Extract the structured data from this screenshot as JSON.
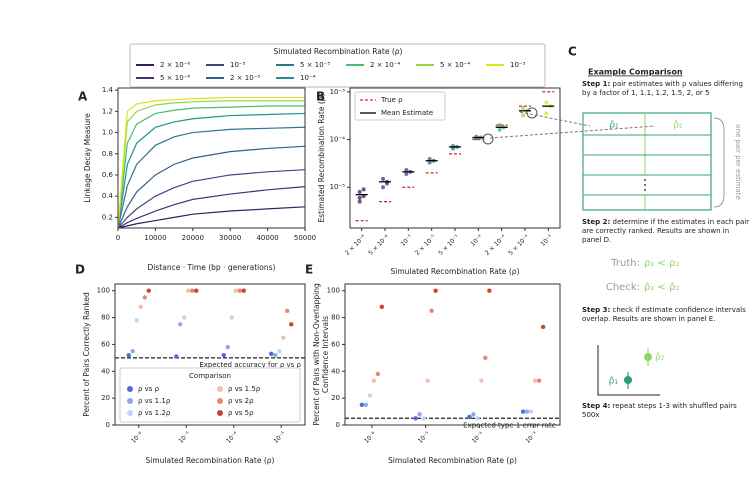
{
  "chart_data": [
    {
      "type": "line",
      "panel": "A",
      "xlabel": "Distance · Time (bp · generations)",
      "ylabel": "Linkage Decay Measure",
      "legend_title": "Simulated Recombination Rate (ρ)",
      "x": [
        0,
        2500,
        5000,
        10000,
        15000,
        20000,
        30000,
        40000,
        50000
      ],
      "xlim": [
        0,
        50000
      ],
      "xticks": [
        0,
        10000,
        20000,
        30000,
        40000,
        50000
      ],
      "ylim": [
        0.1,
        1.42
      ],
      "yticks": [
        0.2,
        0.4,
        0.6,
        0.8,
        {
          "value": 1,
          "label": "1.0"
        },
        1.2,
        1.4
      ],
      "series": [
        {
          "name": "2 × 10⁻⁶",
          "color": "#3d1a5c",
          "values": [
            0.1,
            0.12,
            0.14,
            0.17,
            0.2,
            0.23,
            0.26,
            0.28,
            0.3
          ]
        },
        {
          "name": "5 × 10⁻⁶",
          "color": "#46307e",
          "values": [
            0.1,
            0.15,
            0.19,
            0.26,
            0.32,
            0.37,
            0.42,
            0.46,
            0.49
          ]
        },
        {
          "name": "10⁻⁵",
          "color": "#414487",
          "values": [
            0.1,
            0.2,
            0.28,
            0.4,
            0.48,
            0.54,
            0.6,
            0.63,
            0.65
          ]
        },
        {
          "name": "2 × 10⁻⁵",
          "color": "#355f8d",
          "values": [
            0.1,
            0.3,
            0.44,
            0.6,
            0.7,
            0.76,
            0.82,
            0.85,
            0.87
          ]
        },
        {
          "name": "5 × 10⁻⁵",
          "color": "#2a788e",
          "values": [
            0.1,
            0.5,
            0.7,
            0.88,
            0.96,
            1.0,
            1.03,
            1.04,
            1.05
          ]
        },
        {
          "name": "10⁻⁴",
          "color": "#21918c",
          "values": [
            0.1,
            0.7,
            0.9,
            1.05,
            1.1,
            1.13,
            1.16,
            1.17,
            1.18
          ]
        },
        {
          "name": "2 × 10⁻⁴",
          "color": "#44bf70",
          "values": [
            0.1,
            0.9,
            1.08,
            1.18,
            1.21,
            1.23,
            1.24,
            1.25,
            1.25
          ]
        },
        {
          "name": "5 × 10⁻⁴",
          "color": "#93d741",
          "values": [
            0.1,
            1.1,
            1.2,
            1.26,
            1.28,
            1.29,
            1.3,
            1.3,
            1.3
          ]
        },
        {
          "name": "10⁻³",
          "color": "#dde318",
          "values": [
            0.1,
            1.2,
            1.27,
            1.3,
            1.31,
            1.32,
            1.33,
            1.33,
            1.33
          ]
        }
      ]
    },
    {
      "type": "dot",
      "panel": "B",
      "xlabel": "Simulated Recombination Rate (ρ)",
      "ylabel": "Estimated Recombination Rate (ρ̂)",
      "yscale": "log",
      "ylim": [
        1.4e-06,
        0.0012
      ],
      "yticks": [
        {
          "value": 1e-05,
          "label": "10⁻⁵"
        },
        {
          "value": 0.0001,
          "label": "10⁻⁴"
        },
        {
          "value": 0.001,
          "label": "10⁻³"
        }
      ],
      "categories": [
        "2 × 10⁻⁶",
        "5 × 10⁻⁶",
        "10⁻⁵",
        "2 × 10⁻⁵",
        "5 × 10⁻⁵",
        "10⁻⁴",
        "2 × 10⁻⁴",
        "5 × 10⁻⁴",
        "10⁻³"
      ],
      "point_colors": [
        "#3d1a5c",
        "#46307e",
        "#414487",
        "#355f8d",
        "#2a788e",
        "#21918c",
        "#44bf70",
        "#93d741",
        "#dde318"
      ],
      "estimates": [
        [
          5e-06,
          6.5e-06,
          8e-06,
          9e-06,
          6e-06
        ],
        [
          1e-05,
          1.3e-05,
          1.5e-05,
          1.2e-05
        ],
        [
          1.9e-05,
          2.1e-05,
          2.3e-05
        ],
        [
          3.3e-05,
          3.6e-05,
          3.9e-05
        ],
        [
          6.5e-05,
          7e-05,
          7.3e-05
        ],
        [
          0.000105,
          0.00011,
          0.000115
        ],
        [
          0.00016,
          0.00018,
          0.0002
        ],
        [
          0.00032,
          0.0004,
          0.00046
        ],
        [
          0.00035,
          0.0005,
          0.0006
        ]
      ],
      "series": [
        {
          "name": "True ρ",
          "color": "#d62728",
          "values": [
            2e-06,
            5e-06,
            1e-05,
            2e-05,
            5e-05,
            0.0001,
            0.0002,
            0.0005,
            0.001
          ]
        },
        {
          "name": "Mean Estimate",
          "color": "#000000",
          "values": [
            7e-06,
            1.3e-05,
            2.1e-05,
            3.6e-05,
            7e-05,
            0.00011,
            0.00018,
            0.0004,
            0.0005
          ]
        }
      ]
    },
    {
      "type": "scatter",
      "panel": "D",
      "xlabel": "Simulated Recombination Rate (ρ)",
      "ylabel": "Percent of Pairs Correctly Ranked",
      "categories": [
        "10⁻⁶",
        "10⁻⁵",
        "10⁻⁴",
        "10⁻³"
      ],
      "ylim": [
        0,
        105
      ],
      "yticks": [
        0,
        20,
        40,
        60,
        80,
        100
      ],
      "reference": {
        "value": 50,
        "label": "Expected accuracy for ρ vs ρ"
      },
      "legend_title": "Comparison",
      "series": [
        {
          "name": "ρ vs ρ",
          "color": "#4a6fd4",
          "values": [
            52,
            51,
            52,
            53
          ]
        },
        {
          "name": "ρ vs 1.1ρ",
          "color": "#8fa8e8",
          "values": [
            55,
            75,
            58,
            52
          ]
        },
        {
          "name": "ρ vs 1.2ρ",
          "color": "#c5d2f2",
          "values": [
            78,
            80,
            80,
            55
          ]
        },
        {
          "name": "ρ vs 1.5ρ",
          "color": "#f0c0b0",
          "values": [
            88,
            100,
            100,
            65
          ]
        },
        {
          "name": "ρ vs 2ρ",
          "color": "#e8876a",
          "values": [
            95,
            100,
            100,
            85
          ]
        },
        {
          "name": "ρ vs 5ρ",
          "color": "#c9452e",
          "values": [
            100,
            100,
            100,
            75
          ]
        }
      ]
    },
    {
      "type": "scatter",
      "panel": "E",
      "xlabel": "Simulated Recombination Rate (ρ)",
      "ylabel": [
        "Percent of Pairs with Non-Overlapping",
        "Confidence Intervals"
      ],
      "categories": [
        "10⁻⁶",
        "10⁻⁵",
        "10⁻⁴",
        "10⁻³"
      ],
      "ylim": [
        0,
        105
      ],
      "yticks": [
        0,
        20,
        40,
        60,
        80,
        100
      ],
      "reference": {
        "value": 5,
        "label": "Expected type 1 error rate"
      },
      "series": [
        {
          "color": "#4a6fd4",
          "values": [
            15,
            5,
            6,
            10
          ]
        },
        {
          "color": "#8fa8e8",
          "values": [
            15,
            8,
            8,
            10
          ]
        },
        {
          "color": "#c5d2f2",
          "values": [
            22,
            5,
            5,
            10
          ]
        },
        {
          "color": "#f0c0b0",
          "values": [
            33,
            33,
            33,
            33
          ]
        },
        {
          "color": "#e8876a",
          "values": [
            38,
            85,
            50,
            33
          ]
        },
        {
          "color": "#c9452e",
          "values": [
            88,
            100,
            100,
            73
          ]
        }
      ]
    }
  ],
  "panel_c": {
    "letter": "C",
    "title": "Example Comparison",
    "steps": [
      {
        "label": "Step 1:",
        "text": "pair estimates with ρ values differing by a factor of 1, 1.1, 1.2, 1.5, 2, or 5"
      },
      {
        "label": "Step 2:",
        "text": "determine if the estimates in each pair are correctly ranked. Results are shown in panel D."
      },
      {
        "label": "Step 3:",
        "text": "check if estimate confidence intervals overlap. Results are shown in panel E."
      },
      {
        "label": "Step 4:",
        "text": "repeat steps 1-3 with shuffled pairs 500x"
      }
    ],
    "table_headers": [
      "ρ̂₁",
      "ρ̂₂"
    ],
    "side_note": "one pair per estimate",
    "truth": {
      "label": "Truth:",
      "expr": "ρ₁ < ρ₂"
    },
    "check": {
      "label": "Check:",
      "expr": "ρ̂₁ < ρ̂₂"
    },
    "ci_labels": [
      "ρ̂₁",
      "ρ̂₂"
    ]
  }
}
